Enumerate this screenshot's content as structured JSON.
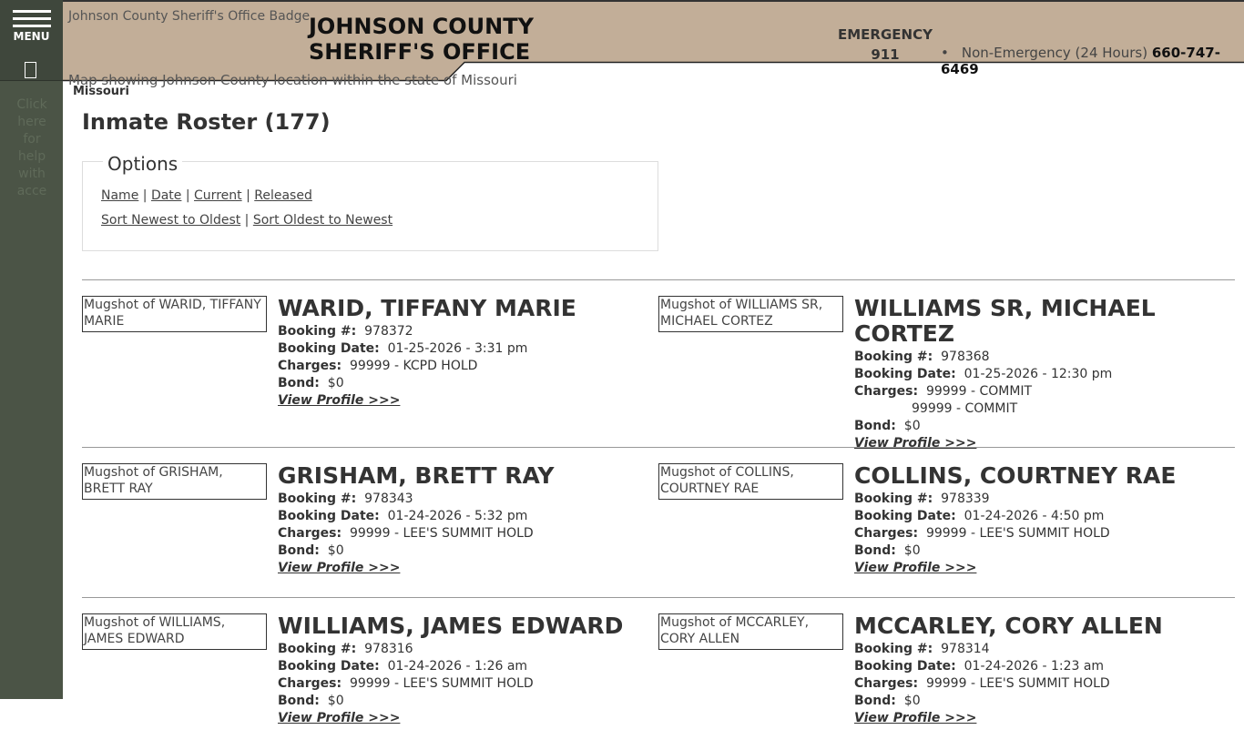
{
  "sidebar": {
    "menu_label": "MENU",
    "help_text": "Click here for help with acce"
  },
  "header": {
    "badge_alt": "Johnson County Sheriff's Office Badge",
    "title_line1": "JOHNSON COUNTY",
    "title_line2": "SHERIFF'S OFFICE",
    "emergency_label": "EMERGENCY",
    "emergency_number": "911",
    "non_emergency_label": "Non-Emergency (24 Hours)",
    "non_emergency_number": "660-747-6469",
    "map_alt": "Map showing Johnson County location within the state of Missouri",
    "state": "Missouri"
  },
  "page": {
    "title": "Inmate Roster (177)"
  },
  "options": {
    "legend": "Options",
    "filters": [
      "Name",
      "Date",
      "Current",
      "Released"
    ],
    "sorts": [
      "Sort Newest to Oldest",
      "Sort Oldest to Newest"
    ]
  },
  "labels": {
    "booking": "Booking #:",
    "date": "Booking Date:",
    "charges": "Charges:",
    "bond": "Bond:",
    "view": "View Profile >>>"
  },
  "inmates": [
    {
      "name": "WARID, TIFFANY MARIE",
      "mug": "Mugshot of WARID, TIFFANY MARIE",
      "booking": "978372",
      "date": "01-25-2026 - 3:31 pm",
      "charges": [
        "99999 - KCPD HOLD"
      ],
      "bond": "$0"
    },
    {
      "name": "WILLIAMS SR, MICHAEL CORTEZ",
      "mug": "Mugshot of WILLIAMS SR, MICHAEL CORTEZ",
      "booking": "978368",
      "date": "01-25-2026 - 12:30 pm",
      "charges": [
        "99999 - COMMIT",
        "99999 - COMMIT"
      ],
      "bond": "$0"
    },
    {
      "name": "GRISHAM, BRETT RAY",
      "mug": "Mugshot of GRISHAM, BRETT RAY",
      "booking": "978343",
      "date": "01-24-2026 - 5:32 pm",
      "charges": [
        "99999 - LEE'S SUMMIT HOLD"
      ],
      "bond": "$0"
    },
    {
      "name": "COLLINS, COURTNEY RAE",
      "mug": "Mugshot of COLLINS, COURTNEY RAE",
      "booking": "978339",
      "date": "01-24-2026 - 4:50 pm",
      "charges": [
        "99999 - LEE'S SUMMIT HOLD"
      ],
      "bond": "$0"
    },
    {
      "name": "WILLIAMS, JAMES EDWARD",
      "mug": "Mugshot of WILLIAMS, JAMES EDWARD",
      "booking": "978316",
      "date": "01-24-2026 - 1:26 am",
      "charges": [
        "99999 - LEE'S SUMMIT HOLD"
      ],
      "bond": "$0"
    },
    {
      "name": "MCCARLEY, CORY ALLEN",
      "mug": "Mugshot of MCCARLEY, CORY ALLEN",
      "booking": "978314",
      "date": "01-24-2026 - 1:23 am",
      "charges": [
        "99999 - LEE'S SUMMIT HOLD"
      ],
      "bond": "$0"
    }
  ]
}
